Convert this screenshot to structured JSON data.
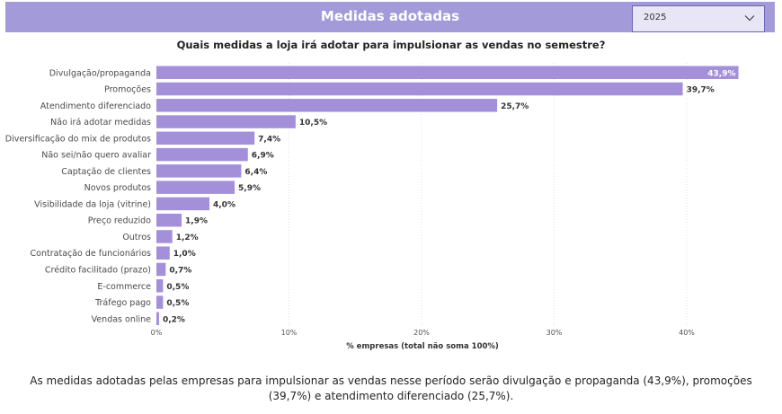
{
  "header": {
    "title": "Medidas adotadas"
  },
  "filter": {
    "year": "2025",
    "icon": "chevron-down-icon"
  },
  "chart_data": {
    "type": "bar",
    "orientation": "horizontal",
    "title": "Quais medidas a loja irá adotar para impulsionar as vendas no semestre?",
    "xlabel": "% empresas (total não soma 100%)",
    "ylabel": "",
    "xlim": [
      0,
      45
    ],
    "xticks": [
      0,
      10,
      20,
      30,
      40
    ],
    "xtick_labels": [
      "0%",
      "10%",
      "20%",
      "30%",
      "40%"
    ],
    "grid": true,
    "bar_color": "#a48fd9",
    "categories": [
      "Divulgação/propaganda",
      "Promoções",
      "Atendimento diferenciado",
      "Não irá adotar medidas",
      "Diversificação do mix de produtos",
      "Não sei/não quero avaliar",
      "Captação de clientes",
      "Novos produtos",
      "Visibilidade da loja (vitrine)",
      "Preço reduzido",
      "Outros",
      "Contratação de funcionários",
      "Crédito facilitado (prazo)",
      "E-commerce",
      "Tráfego pago",
      "Vendas online"
    ],
    "values": [
      43.9,
      39.7,
      25.7,
      10.5,
      7.4,
      6.9,
      6.4,
      5.9,
      4.0,
      1.9,
      1.2,
      1.0,
      0.7,
      0.5,
      0.5,
      0.2
    ],
    "value_labels": [
      "43,9%",
      "39,7%",
      "25,7%",
      "10,5%",
      "7,4%",
      "6,9%",
      "6,4%",
      "5,9%",
      "4,0%",
      "1,9%",
      "1,2%",
      "1,0%",
      "0,7%",
      "0,5%",
      "0,5%",
      "0,2%"
    ]
  },
  "caption": "As medidas adotadas pelas empresas para impulsionar as vendas nesse período serão divulgação e propaganda (43,9%), promoções (39,7%) e atendimento diferenciado (25,7%)."
}
